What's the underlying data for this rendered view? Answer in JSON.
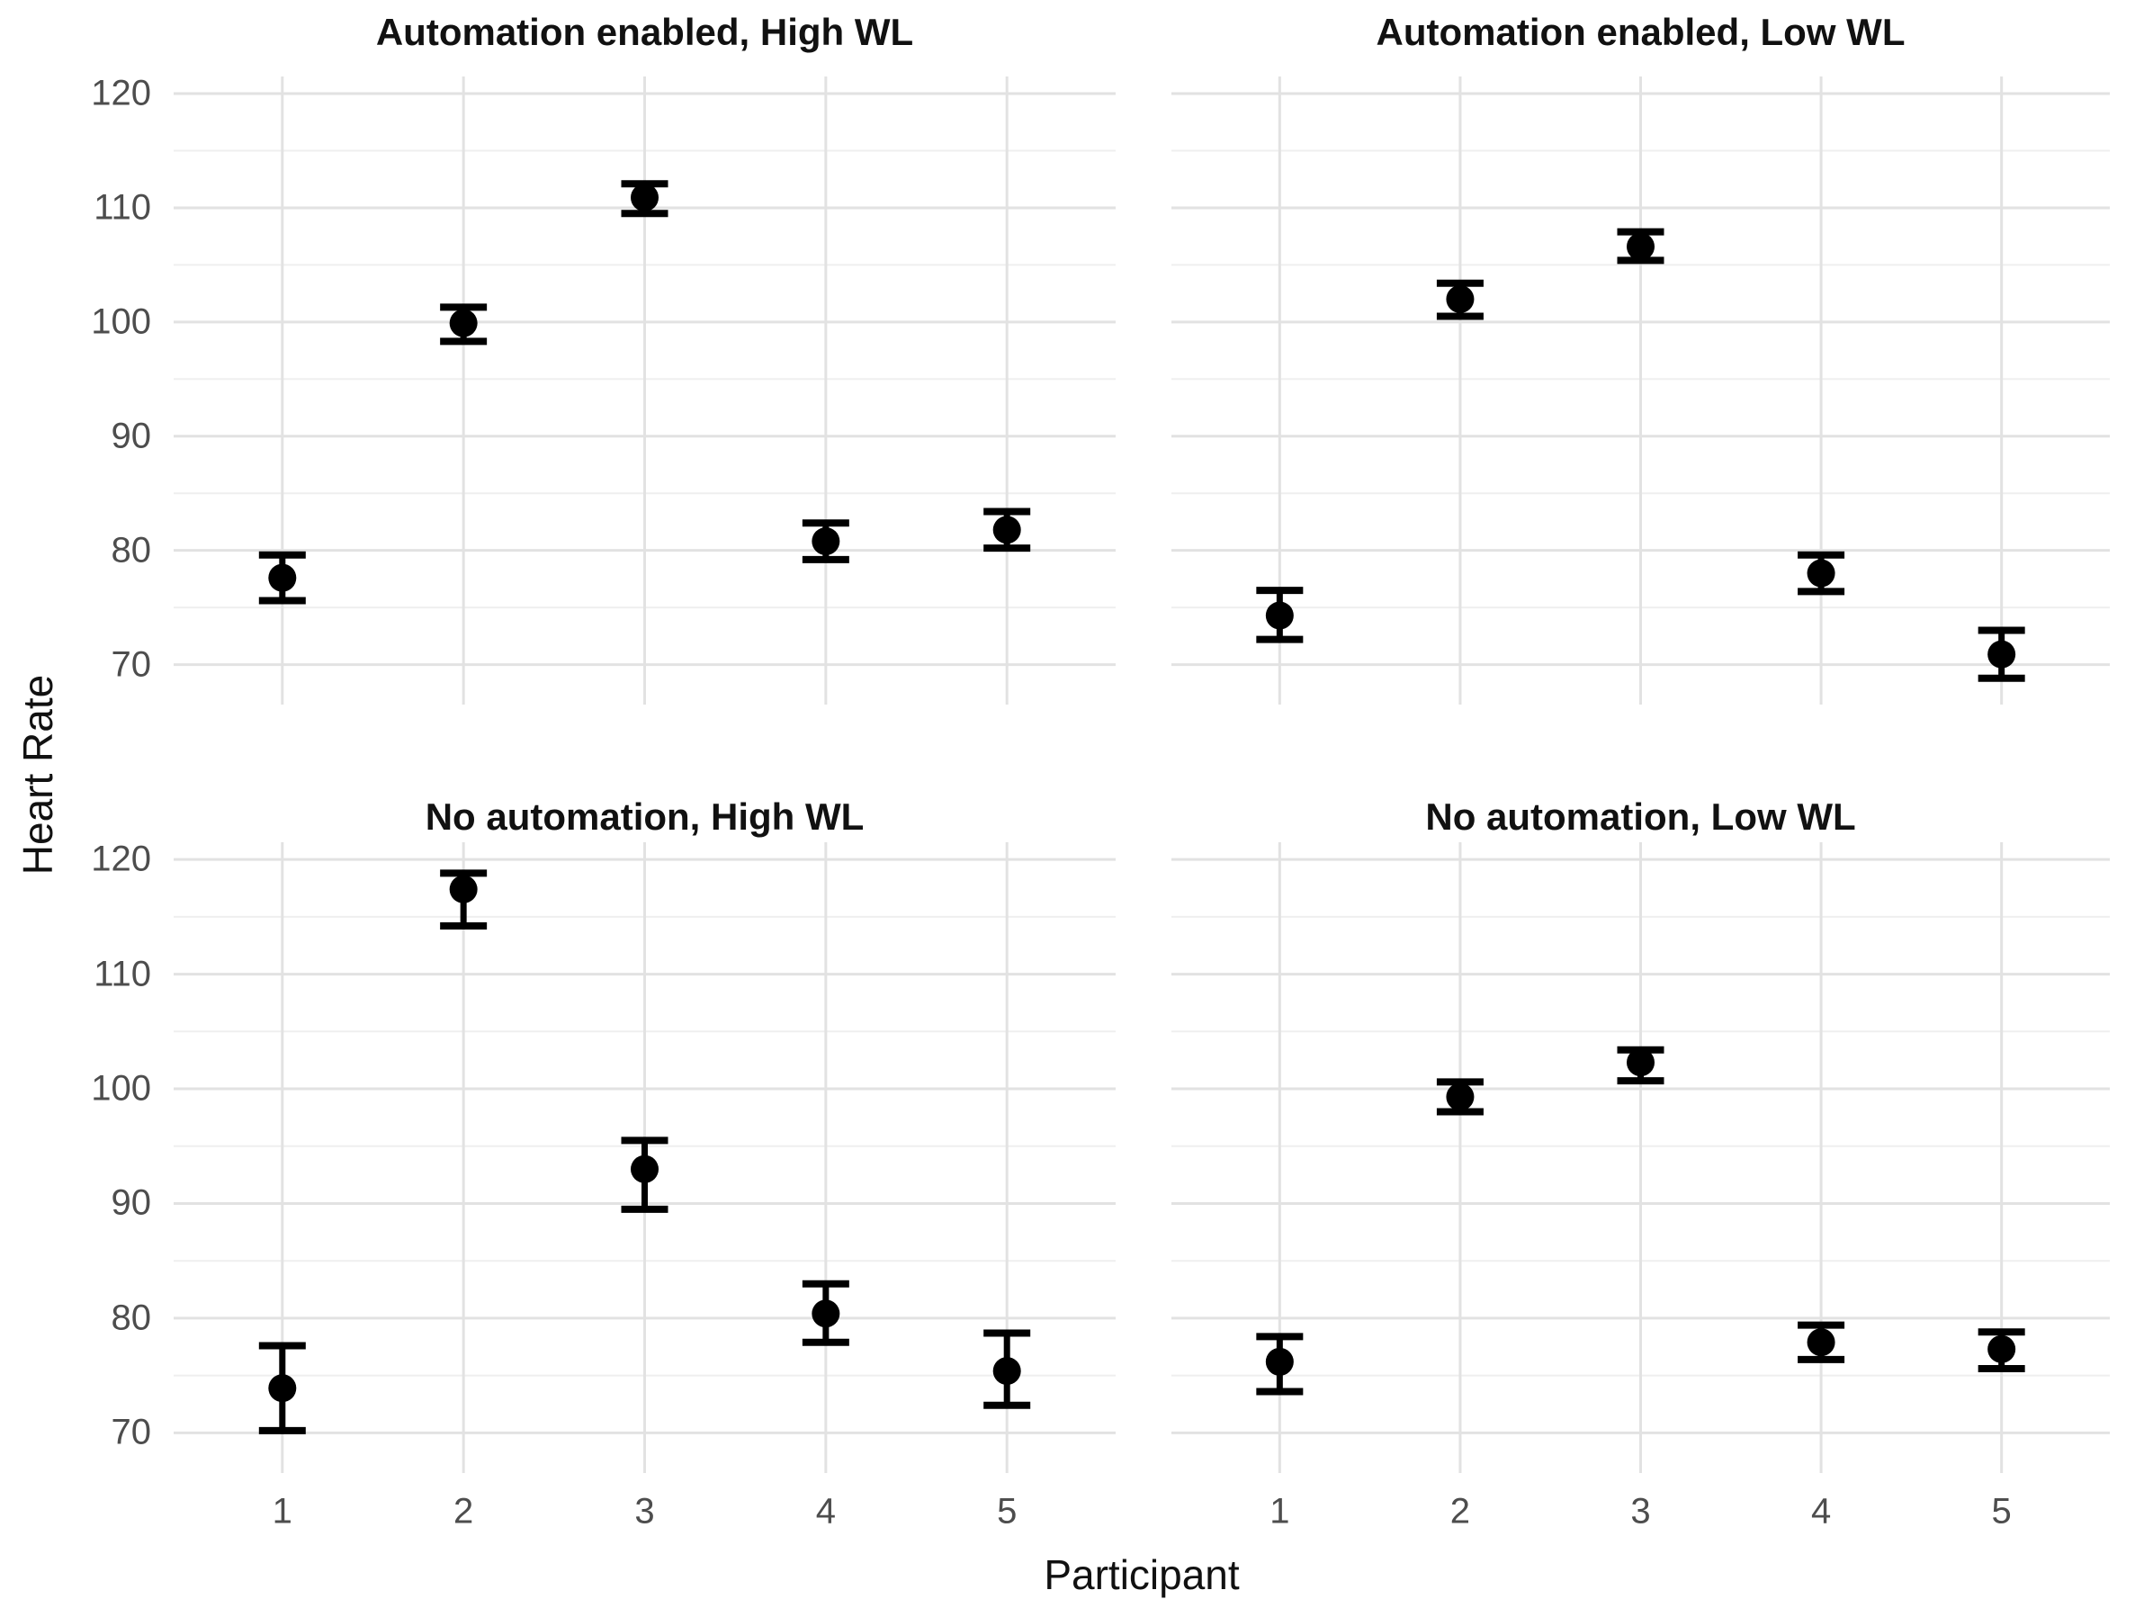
{
  "chart_data": {
    "type": "scatter",
    "subtype": "point-with-error-bars-faceted",
    "xlabel": "Participant",
    "ylabel": "Heart Rate",
    "x_categories": [
      "1",
      "2",
      "3",
      "4",
      "5"
    ],
    "y_ticks": [
      70,
      80,
      90,
      100,
      110,
      120
    ],
    "y_minor_ticks": [
      75,
      85,
      95,
      105,
      115
    ],
    "ylim": [
      66.5,
      121.5
    ],
    "grid": "on",
    "legend": "none",
    "facets": [
      {
        "title": "Automation enabled, High WL",
        "row": 0,
        "col": 0,
        "points": [
          {
            "x": 1,
            "y": 77.6,
            "ymin": 75.6,
            "ymax": 79.6
          },
          {
            "x": 2,
            "y": 99.9,
            "ymin": 98.3,
            "ymax": 101.3
          },
          {
            "x": 3,
            "y": 110.9,
            "ymin": 109.5,
            "ymax": 112.1
          },
          {
            "x": 4,
            "y": 80.8,
            "ymin": 79.2,
            "ymax": 82.4
          },
          {
            "x": 5,
            "y": 81.8,
            "ymin": 80.2,
            "ymax": 83.4
          }
        ]
      },
      {
        "title": "Automation enabled, Low WL",
        "row": 0,
        "col": 1,
        "points": [
          {
            "x": 1,
            "y": 74.3,
            "ymin": 72.2,
            "ymax": 76.5
          },
          {
            "x": 2,
            "y": 102.0,
            "ymin": 100.5,
            "ymax": 103.4
          },
          {
            "x": 3,
            "y": 106.6,
            "ymin": 105.4,
            "ymax": 107.9
          },
          {
            "x": 4,
            "y": 78.0,
            "ymin": 76.4,
            "ymax": 79.6
          },
          {
            "x": 5,
            "y": 70.9,
            "ymin": 68.8,
            "ymax": 73.0
          }
        ]
      },
      {
        "title": "No automation, High WL",
        "row": 1,
        "col": 0,
        "points": [
          {
            "x": 1,
            "y": 73.9,
            "ymin": 70.2,
            "ymax": 77.6
          },
          {
            "x": 2,
            "y": 117.4,
            "ymin": 114.2,
            "ymax": 118.8
          },
          {
            "x": 3,
            "y": 93.0,
            "ymin": 89.5,
            "ymax": 95.5
          },
          {
            "x": 4,
            "y": 80.4,
            "ymin": 77.9,
            "ymax": 83.0
          },
          {
            "x": 5,
            "y": 75.4,
            "ymin": 72.4,
            "ymax": 78.7
          }
        ]
      },
      {
        "title": "No automation, Low WL",
        "row": 1,
        "col": 1,
        "points": [
          {
            "x": 1,
            "y": 76.2,
            "ymin": 73.6,
            "ymax": 78.4
          },
          {
            "x": 2,
            "y": 99.3,
            "ymin": 98.0,
            "ymax": 100.6
          },
          {
            "x": 3,
            "y": 102.3,
            "ymin": 100.7,
            "ymax": 103.4
          },
          {
            "x": 4,
            "y": 77.9,
            "ymin": 76.4,
            "ymax": 79.4
          },
          {
            "x": 5,
            "y": 77.3,
            "ymin": 75.6,
            "ymax": 78.8
          }
        ]
      }
    ],
    "colors": {
      "point": "#000000",
      "error_bar": "#000000",
      "grid_major": "#e2e2e2",
      "grid_minor": "#efefef",
      "tick_label": "#4d4d4d",
      "title_text": "#111111",
      "background": "#ffffff"
    }
  }
}
